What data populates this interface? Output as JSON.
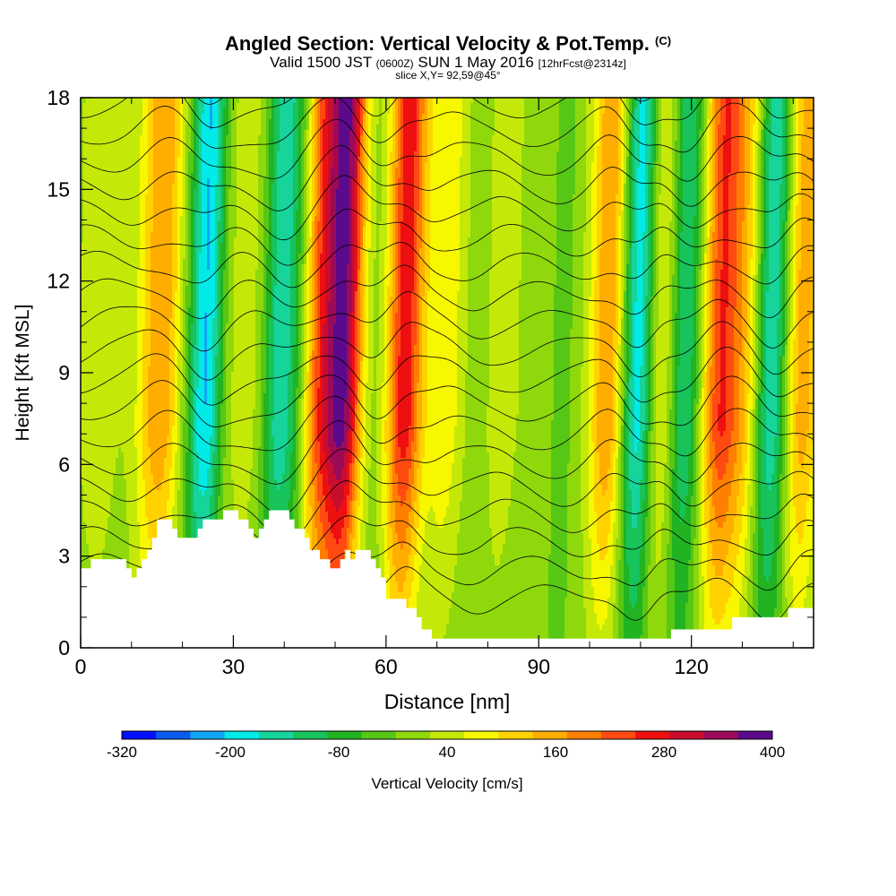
{
  "title": {
    "main": "Angled Section: Vertical Velocity & Pot.Temp.",
    "tag": "(C)"
  },
  "subtitle": {
    "part1": "Valid 1500 JST",
    "part2": "(0600Z)",
    "part3": "SUN 1 May 2016",
    "part4": "[12hrFcst@2314z]"
  },
  "slice_label": "slice X,Y= 92,59@45°",
  "chart_data": {
    "type": "heatmap",
    "xlabel": "Distance [nm]",
    "ylabel": "Height [Kft MSL]",
    "xlim": [
      0,
      144
    ],
    "ylim": [
      0,
      18
    ],
    "x_ticks": [
      0,
      30,
      60,
      90,
      120
    ],
    "y_ticks": [
      0,
      3,
      6,
      9,
      12,
      15,
      18
    ],
    "grid": false,
    "colorbar": {
      "label": "Vertical Velocity [cm/s]",
      "tick_labels": [
        -320,
        -200,
        -80,
        40,
        160,
        280,
        400
      ],
      "bins": [
        -320,
        -280,
        -240,
        -200,
        -160,
        -120,
        -80,
        -40,
        0,
        40,
        80,
        120,
        160,
        200,
        240,
        280,
        320,
        360,
        400
      ],
      "colors": [
        "#0010ff",
        "#0a5cf0",
        "#10a6f5",
        "#00ebe8",
        "#16d49a",
        "#17c35a",
        "#21b321",
        "#57c716",
        "#8fd80b",
        "#c4e908",
        "#f7f700",
        "#ffd200",
        "#ffae00",
        "#ff7f00",
        "#ff4b12",
        "#ee1010",
        "#c80d2e",
        "#9c0a5a",
        "#5a0a8a"
      ],
      "position": "bottom"
    },
    "updraft_columns": [
      {
        "x": 4,
        "w": 40
      },
      {
        "x": 14,
        "w": 80
      },
      {
        "x": 17,
        "w": 120
      },
      {
        "x": 29,
        "w": 40
      },
      {
        "x": 35,
        "w": 40
      },
      {
        "x": 47,
        "w": 200
      },
      {
        "x": 52,
        "w": 360
      },
      {
        "x": 64,
        "w": 280
      },
      {
        "x": 72,
        "w": 80
      },
      {
        "x": 82,
        "w": 60
      },
      {
        "x": 104,
        "w": 180
      },
      {
        "x": 114,
        "w": 120
      },
      {
        "x": 126,
        "w": 240
      },
      {
        "x": 131,
        "w": 120
      },
      {
        "x": 142,
        "w": 160
      }
    ],
    "downdraft_columns": [
      {
        "x": 25,
        "w": -240
      },
      {
        "x": 39,
        "w": -160
      },
      {
        "x": 43,
        "w": -80
      },
      {
        "x": 58,
        "w": -40
      },
      {
        "x": 80,
        "w": -40
      },
      {
        "x": 95,
        "w": -40
      },
      {
        "x": 110,
        "w": -240
      },
      {
        "x": 119,
        "w": -160
      },
      {
        "x": 136,
        "w": -200
      }
    ],
    "terrain_heights_kft": [
      [
        0,
        2.6
      ],
      [
        2,
        2.9
      ],
      [
        9,
        2.6
      ],
      [
        10,
        2.3
      ],
      [
        11,
        2.6
      ],
      [
        12,
        2.9
      ],
      [
        13,
        3.2
      ],
      [
        14,
        3.6
      ],
      [
        15,
        4.2
      ],
      [
        17,
        4.2
      ],
      [
        18,
        3.9
      ],
      [
        19,
        3.6
      ],
      [
        22,
        3.6
      ],
      [
        23,
        3.9
      ],
      [
        24,
        4.2
      ],
      [
        27,
        4.2
      ],
      [
        28,
        4.5
      ],
      [
        30,
        4.5
      ],
      [
        31,
        4.2
      ],
      [
        33,
        3.9
      ],
      [
        34,
        3.6
      ],
      [
        35,
        3.9
      ],
      [
        36,
        4.2
      ],
      [
        37,
        4.5
      ],
      [
        40,
        4.5
      ],
      [
        41,
        4.2
      ],
      [
        42,
        3.9
      ],
      [
        44,
        3.6
      ],
      [
        45,
        3.2
      ],
      [
        47,
        2.9
      ],
      [
        49,
        2.6
      ],
      [
        51,
        2.9
      ],
      [
        52,
        3.2
      ],
      [
        53,
        2.9
      ],
      [
        54,
        3.2
      ],
      [
        56,
        3.2
      ],
      [
        57,
        2.9
      ],
      [
        58,
        2.6
      ],
      [
        59,
        2.3
      ],
      [
        60,
        1.6
      ],
      [
        64,
        1.3
      ],
      [
        66,
        1.0
      ],
      [
        67,
        0.6
      ],
      [
        69,
        0.3
      ],
      [
        115,
        0.3
      ],
      [
        116,
        0.6
      ],
      [
        122,
        0.6
      ],
      [
        128,
        1.0
      ],
      [
        138,
        1.0
      ],
      [
        139,
        1.3
      ],
      [
        144,
        1.3
      ]
    ],
    "isentrope_count": 20
  }
}
